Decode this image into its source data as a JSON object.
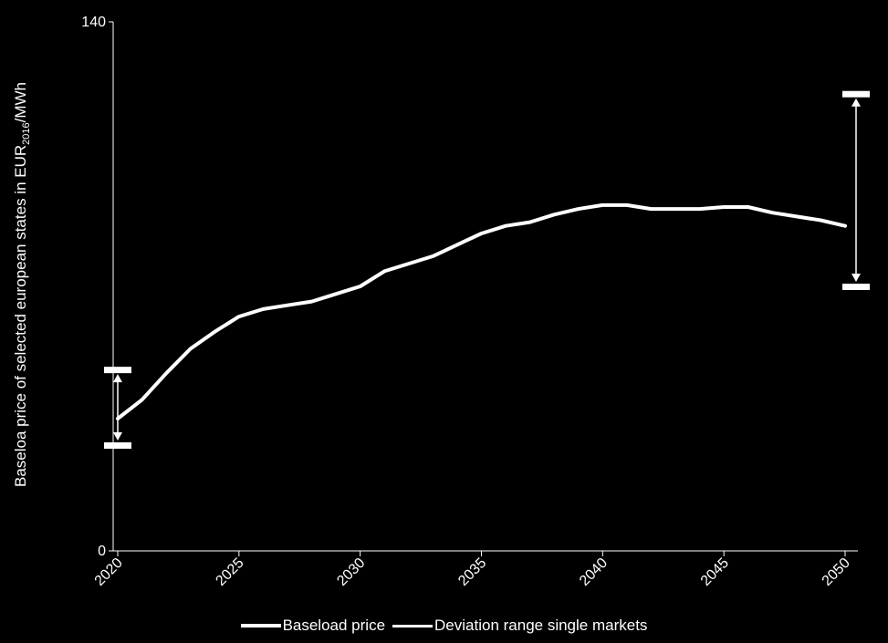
{
  "chart_data": {
    "type": "line",
    "ylabel_main": "Baseloa price of selected european states in EUR",
    "ylabel_sub": "2016",
    "ylabel_unit": "/MWh",
    "xlabel": "",
    "ylim": [
      0,
      140
    ],
    "xlim": [
      2020,
      2050
    ],
    "y_ticks": [
      "0",
      "140"
    ],
    "x_ticks": [
      2020,
      2025,
      2030,
      2035,
      2040,
      2045,
      2050
    ],
    "series": [
      {
        "name": "Baseload price",
        "x": [
          2020,
          2021,
          2022,
          2023,
          2024,
          2025,
          2026,
          2027,
          2028,
          2029,
          2030,
          2031,
          2032,
          2033,
          2034,
          2035,
          2036,
          2037,
          2038,
          2039,
          2040,
          2041,
          2042,
          2043,
          2044,
          2045,
          2046,
          2047,
          2048,
          2049,
          2050
        ],
        "y": [
          35,
          40,
          47,
          53.5,
          58,
          62,
          64,
          65,
          66,
          68,
          70,
          74,
          76,
          78,
          81,
          84,
          86,
          87,
          89,
          90.5,
          91.5,
          91.5,
          90.5,
          90.5,
          90.5,
          91,
          91,
          89.5,
          88.5,
          87.5,
          86
        ]
      }
    ],
    "deviation_ranges": [
      {
        "name": "Deviation range single markets",
        "x": 2020,
        "low": 28,
        "high": 48
      },
      {
        "name": "Deviation range single markets",
        "x": 2050,
        "low": 70,
        "high": 121
      }
    ],
    "legend": [
      "Baseload price",
      "Deviation range single markets"
    ],
    "legend_position": "bottom",
    "grid": false,
    "colors": {
      "background": "#000000",
      "line": "#ffffff"
    }
  }
}
